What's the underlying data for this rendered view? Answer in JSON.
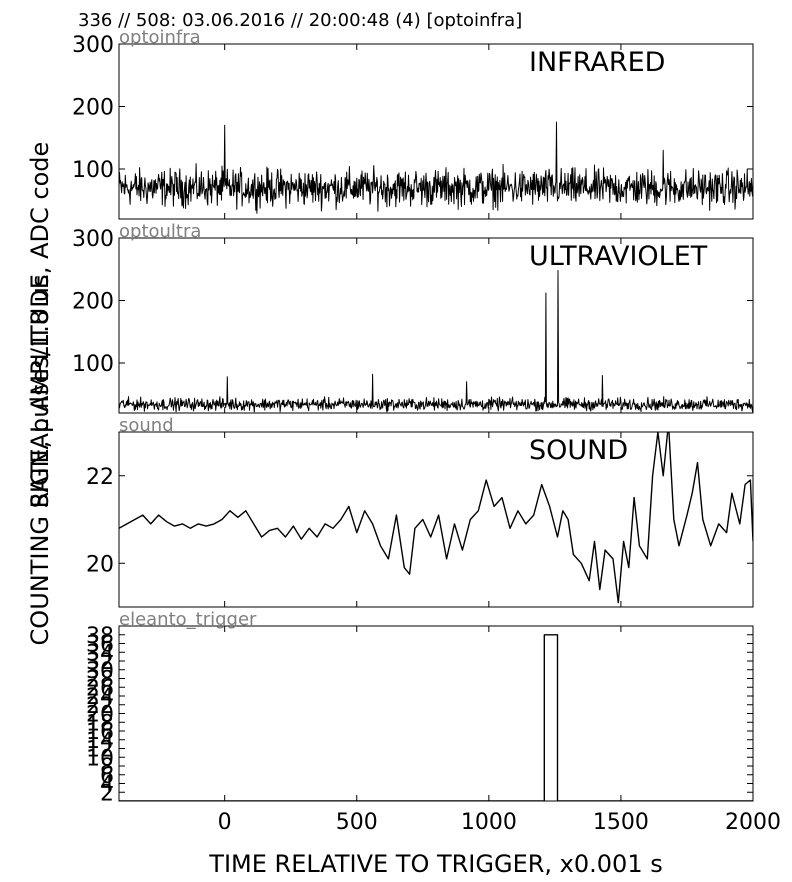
{
  "header": {
    "title": "336 // 508:   03.06.2016 // 20:00:48 (4)  [optoinfra]"
  },
  "ylabels": {
    "counting": "COUNTING RATE,   pulses/1.8 us",
    "amplitude": "SIGNAL AMPLITUDE,  ADC code"
  },
  "xlabel": "TIME RELATIVE TO TRIGGER,   x0.001 s",
  "colors": {
    "line": "#000000",
    "tag": "#808080",
    "frame": "#000000",
    "background": "#ffffff"
  },
  "chart_data": [
    {
      "type": "line",
      "tag": "optoinfra",
      "title": "INFRARED",
      "xlim": [
        -400,
        2000
      ],
      "ylim": [
        20,
        300
      ],
      "yticks": [
        100,
        200,
        300
      ],
      "yticklabels": [
        "100",
        "200",
        "300"
      ],
      "baseline": 70,
      "noise": 18,
      "spikes": [
        [
          0,
          170
        ],
        [
          1255,
          175
        ],
        [
          1660,
          130
        ]
      ]
    },
    {
      "type": "line",
      "tag": "optoultra",
      "title": "ULTRAVIOLET",
      "xlim": [
        -400,
        2000
      ],
      "ylim": [
        20,
        300
      ],
      "yticks": [
        100,
        200,
        300
      ],
      "yticklabels": [
        "100",
        "200",
        "300"
      ],
      "baseline": 34,
      "noise": 6,
      "spikes": [
        [
          10,
          78
        ],
        [
          560,
          82
        ],
        [
          915,
          70
        ],
        [
          1215,
          212
        ],
        [
          1262,
          248
        ],
        [
          1430,
          80
        ]
      ]
    },
    {
      "type": "line",
      "tag": "sound",
      "title": "SOUND",
      "xlim": [
        -400,
        2000
      ],
      "ylim": [
        19,
        23
      ],
      "yticks": [
        20,
        22
      ],
      "yticklabels": [
        "20",
        "22"
      ],
      "points": [
        [
          -400,
          20.8
        ],
        [
          -370,
          20.9
        ],
        [
          -340,
          21.0
        ],
        [
          -310,
          21.1
        ],
        [
          -280,
          20.9
        ],
        [
          -250,
          21.1
        ],
        [
          -220,
          20.95
        ],
        [
          -190,
          20.85
        ],
        [
          -160,
          20.9
        ],
        [
          -130,
          20.8
        ],
        [
          -100,
          20.9
        ],
        [
          -70,
          20.85
        ],
        [
          -40,
          20.9
        ],
        [
          -10,
          21.0
        ],
        [
          20,
          21.2
        ],
        [
          50,
          21.05
        ],
        [
          80,
          21.2
        ],
        [
          110,
          20.9
        ],
        [
          140,
          20.6
        ],
        [
          170,
          20.75
        ],
        [
          200,
          20.8
        ],
        [
          230,
          20.6
        ],
        [
          260,
          20.85
        ],
        [
          290,
          20.55
        ],
        [
          320,
          20.8
        ],
        [
          350,
          20.6
        ],
        [
          380,
          20.9
        ],
        [
          410,
          20.8
        ],
        [
          440,
          21.0
        ],
        [
          470,
          21.3
        ],
        [
          500,
          20.7
        ],
        [
          530,
          21.2
        ],
        [
          560,
          20.9
        ],
        [
          590,
          20.4
        ],
        [
          620,
          20.1
        ],
        [
          650,
          21.1
        ],
        [
          680,
          19.9
        ],
        [
          700,
          19.75
        ],
        [
          720,
          20.8
        ],
        [
          750,
          21.0
        ],
        [
          780,
          20.6
        ],
        [
          810,
          21.1
        ],
        [
          840,
          20.1
        ],
        [
          870,
          20.9
        ],
        [
          900,
          20.3
        ],
        [
          930,
          21.0
        ],
        [
          960,
          21.2
        ],
        [
          990,
          21.9
        ],
        [
          1020,
          21.3
        ],
        [
          1050,
          21.5
        ],
        [
          1080,
          20.8
        ],
        [
          1110,
          21.2
        ],
        [
          1140,
          20.9
        ],
        [
          1170,
          21.1
        ],
        [
          1200,
          21.8
        ],
        [
          1230,
          21.3
        ],
        [
          1260,
          20.6
        ],
        [
          1280,
          21.2
        ],
        [
          1300,
          21.0
        ],
        [
          1320,
          20.2
        ],
        [
          1350,
          20.0
        ],
        [
          1380,
          19.6
        ],
        [
          1400,
          20.5
        ],
        [
          1420,
          19.4
        ],
        [
          1440,
          20.3
        ],
        [
          1470,
          20.1
        ],
        [
          1490,
          19.1
        ],
        [
          1510,
          20.5
        ],
        [
          1530,
          19.9
        ],
        [
          1550,
          21.5
        ],
        [
          1570,
          20.4
        ],
        [
          1600,
          20.1
        ],
        [
          1620,
          22.0
        ],
        [
          1640,
          23.0
        ],
        [
          1660,
          22.0
        ],
        [
          1680,
          23.2
        ],
        [
          1700,
          21.0
        ],
        [
          1720,
          20.4
        ],
        [
          1750,
          21.1
        ],
        [
          1770,
          21.6
        ],
        [
          1790,
          22.3
        ],
        [
          1810,
          21.0
        ],
        [
          1840,
          20.4
        ],
        [
          1870,
          20.9
        ],
        [
          1900,
          20.7
        ],
        [
          1920,
          21.6
        ],
        [
          1950,
          20.9
        ],
        [
          1970,
          21.8
        ],
        [
          1990,
          21.9
        ],
        [
          2000,
          20.5
        ]
      ]
    },
    {
      "type": "area",
      "tag": "eleanto_trigger",
      "title": "",
      "xlim": [
        -400,
        2000
      ],
      "ylim": [
        0,
        40
      ],
      "yticks": [
        2,
        4,
        6,
        8,
        10,
        12,
        14,
        16,
        18,
        20,
        22,
        24,
        26,
        28,
        30,
        32,
        34,
        36,
        38
      ],
      "yticklabels": [
        "2",
        "4",
        "6",
        "8",
        "10",
        "12",
        "14",
        "16",
        "18",
        "20",
        "22",
        "24",
        "26",
        "28",
        "30",
        "32",
        "34",
        "36",
        "38"
      ],
      "points": [
        [
          -400,
          0
        ],
        [
          1210,
          0
        ],
        [
          1210,
          38
        ],
        [
          1260,
          38
        ],
        [
          1260,
          0
        ],
        [
          2000,
          0
        ]
      ]
    }
  ],
  "xticks": [
    0,
    500,
    1000,
    1500,
    2000
  ],
  "xticklabels": [
    "0",
    "500",
    "1000",
    "1500",
    "2000"
  ]
}
